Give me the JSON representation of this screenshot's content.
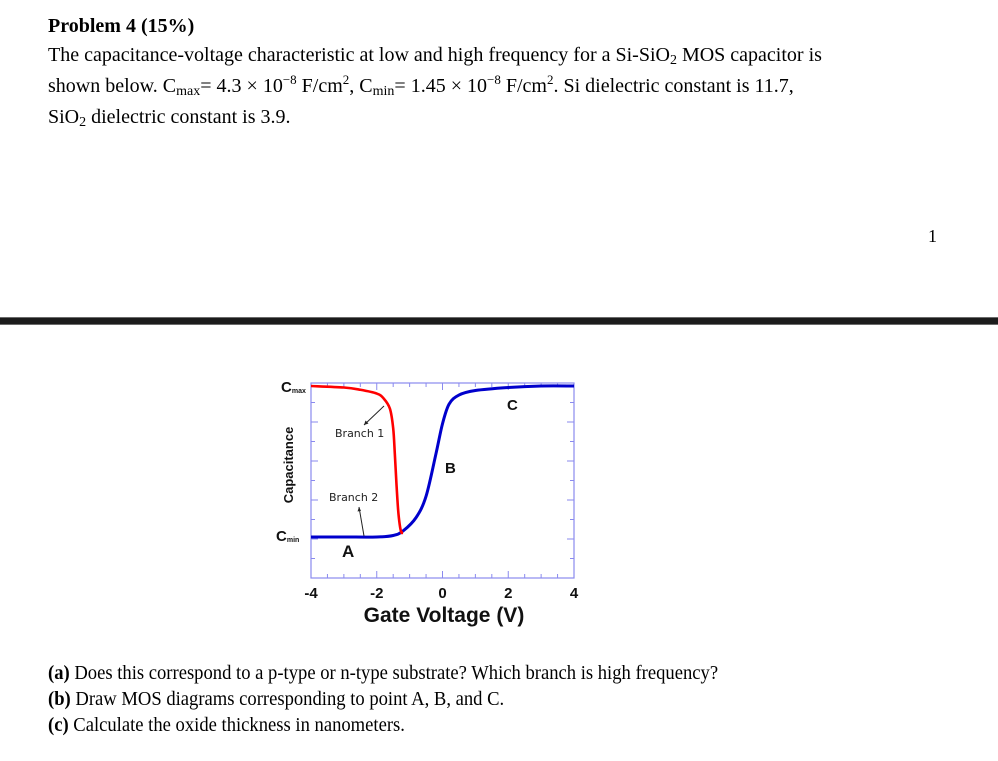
{
  "problem": {
    "title": "Problem 4 (15%)",
    "line1": "The capacitance-voltage characteristic at low and high frequency for a Si-SiO",
    "line1_sub": "2",
    "line1_end": " MOS capacitor is",
    "line2_a": "shown below. C",
    "line2_cmax_sub": "max",
    "line2_b": "= 4.3 × 10",
    "line2_exp1": "−8",
    "line2_c": " F/cm",
    "line2_sq1": "2",
    "line2_d": ", C",
    "line2_cmin_sub": "min",
    "line2_e": "= 1.45 × 10",
    "line2_exp2": "−8",
    "line2_f": " F/cm",
    "line2_sq2": "2",
    "line2_g": ". Si dielectric constant is 11.7,",
    "line3_a": "SiO",
    "line3_sub": "2",
    "line3_b": " dielectric constant is 3.9."
  },
  "page_number": "1",
  "questions": [
    {
      "label": "(a)",
      "text": " Does this correspond to a p-type or n-type substrate? Which branch is high frequency?"
    },
    {
      "label": "(b)",
      "text": " Draw MOS diagrams corresponding to point A, B, and C."
    },
    {
      "label": "(c)",
      "text": " Calculate the oxide thickness in nanometers."
    }
  ],
  "chart_data": {
    "type": "line",
    "title": "",
    "xlabel": "Gate Voltage (V)",
    "ylabel": "Capacitance",
    "xlim": [
      -4,
      4
    ],
    "x_ticks": [
      "-4",
      "-2",
      "0",
      "2",
      "4"
    ],
    "y_ticks": [
      "C_max",
      "C_min"
    ],
    "y_tick_labels": {
      "max": {
        "main": "C",
        "sub": "max"
      },
      "min": {
        "main": "C",
        "sub": "min"
      }
    },
    "grid": false,
    "series": [
      {
        "name": "Branch 1",
        "color": "#ff0000",
        "x": [
          -4.0,
          -3.0,
          -2.5,
          -2.0,
          -1.8,
          -1.6,
          -1.5,
          -1.45,
          -1.4,
          -1.35,
          -1.3,
          -1.25,
          -1.2
        ],
        "values_norm": [
          1.0,
          0.99,
          0.975,
          0.95,
          0.92,
          0.85,
          0.72,
          0.55,
          0.35,
          0.18,
          0.08,
          0.03,
          0.03
        ]
      },
      {
        "name": "Branch 2",
        "color": "#0000cc",
        "x": [
          -4.0,
          -3.0,
          -2.0,
          -1.5,
          -1.2,
          -0.8,
          -0.5,
          -0.2,
          0.0,
          0.2,
          0.5,
          1.0,
          2.0,
          3.0,
          4.0
        ],
        "values_norm": [
          0.0,
          0.0,
          0.0,
          0.01,
          0.04,
          0.13,
          0.27,
          0.55,
          0.75,
          0.88,
          0.94,
          0.97,
          0.99,
          1.0,
          1.0
        ]
      }
    ],
    "annotations": [
      {
        "text": "Branch 1",
        "points_to": "red curve knee near -1.6 V"
      },
      {
        "text": "Branch 2",
        "points_to": "blue flat segment near -2.4 V"
      },
      {
        "text": "A",
        "x": -2.0,
        "region": "C_min plateau"
      },
      {
        "text": "B",
        "x": 0.3,
        "region": "transition"
      },
      {
        "text": "C",
        "x": 2.1,
        "region": "C_max plateau"
      }
    ],
    "colors": {
      "frame": "#8a8aee",
      "branch1": "#ff0000",
      "branch2": "#0000cc"
    }
  }
}
